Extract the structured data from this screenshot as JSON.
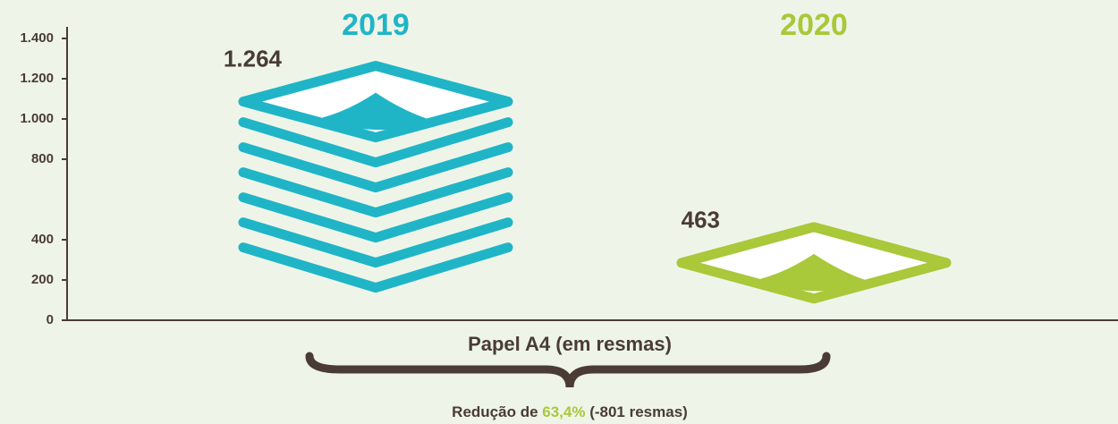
{
  "chart_data": {
    "type": "bar",
    "categories": [
      "2019",
      "2020"
    ],
    "values": [
      1264,
      463
    ],
    "value_labels": [
      "1.264",
      "463"
    ],
    "colors": [
      "#1fb5c7",
      "#a9c83a"
    ],
    "x_label": "Papel A4 (em resmas)",
    "annotation": {
      "prefix": "Redução de ",
      "highlight": "63,4%",
      "suffix": " (-801 resmas)"
    },
    "ylim": [
      0,
      1400
    ],
    "yticks": [
      0,
      200,
      400,
      800,
      {
        "value": 1000,
        "label": "1.000"
      },
      {
        "value": 1200,
        "label": "1.200"
      },
      {
        "value": 1400,
        "label": "1.400"
      }
    ]
  }
}
